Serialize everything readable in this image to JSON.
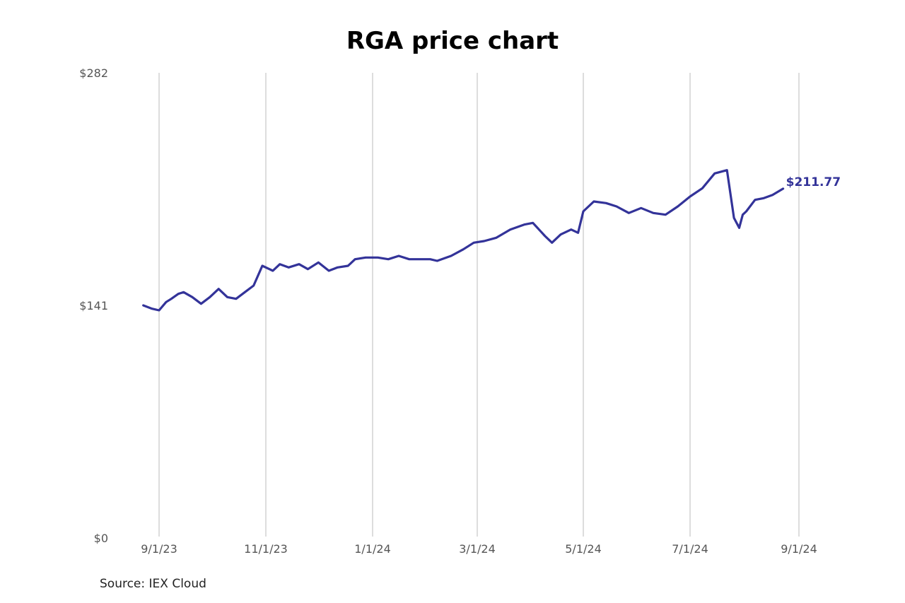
{
  "chart_data": {
    "type": "line",
    "title": "RGA price chart",
    "source": "Source: IEX Cloud",
    "xlabel": "",
    "ylabel": "",
    "x_tick_labels": [
      "9/1/23",
      "11/1/23",
      "1/1/24",
      "3/1/24",
      "5/1/24",
      "7/1/24",
      "9/1/24"
    ],
    "y_tick_labels": [
      "$0",
      "$141",
      "$282"
    ],
    "ylim": [
      0,
      282
    ],
    "grid": "vertical lines at x ticks",
    "line_color": "#333399",
    "end_label": "$211.77",
    "series": [
      {
        "x": [
          "2023-08-23",
          "2023-08-28",
          "2023-09-01",
          "2023-09-05",
          "2023-09-08",
          "2023-09-12",
          "2023-09-15",
          "2023-09-20",
          "2023-09-25",
          "2023-09-30",
          "2023-10-05",
          "2023-10-10",
          "2023-10-15",
          "2023-10-20",
          "2023-10-25",
          "2023-10-30",
          "2023-11-05",
          "2023-11-09",
          "2023-11-14",
          "2023-11-20",
          "2023-11-25",
          "2023-12-01",
          "2023-12-07",
          "2023-12-12",
          "2023-12-18",
          "2023-12-22",
          "2023-12-28",
          "2024-01-04",
          "2024-01-10",
          "2024-01-16",
          "2024-01-22",
          "2024-01-28",
          "2024-02-03",
          "2024-02-07",
          "2024-02-15",
          "2024-02-22",
          "2024-02-28",
          "2024-03-05",
          "2024-03-12",
          "2024-03-20",
          "2024-03-28",
          "2024-04-02",
          "2024-04-09",
          "2024-04-13",
          "2024-04-18",
          "2024-04-24",
          "2024-04-28",
          "2024-05-01",
          "2024-05-07",
          "2024-05-14",
          "2024-05-20",
          "2024-05-27",
          "2024-06-03",
          "2024-06-10",
          "2024-06-17",
          "2024-06-24",
          "2024-07-01",
          "2024-07-08",
          "2024-07-15",
          "2024-07-22",
          "2024-07-26",
          "2024-07-29",
          "2024-07-31",
          "2024-08-02",
          "2024-08-07",
          "2024-08-12",
          "2024-08-17",
          "2024-08-23"
        ],
        "y": [
          141,
          139,
          138,
          143,
          145,
          148,
          149,
          146,
          142,
          146,
          151,
          146,
          145,
          149,
          153,
          165,
          162,
          166,
          164,
          166,
          163,
          167,
          162,
          164,
          165,
          169,
          170,
          170,
          169,
          171,
          169,
          169,
          169,
          168,
          171,
          175,
          179,
          180,
          182,
          187,
          190,
          191,
          183,
          179,
          184,
          187,
          185,
          198,
          204,
          203,
          201,
          197,
          200,
          197,
          196,
          201,
          207,
          212,
          221,
          223,
          194,
          188,
          196,
          198,
          205,
          206,
          208,
          211.77
        ]
      }
    ]
  }
}
